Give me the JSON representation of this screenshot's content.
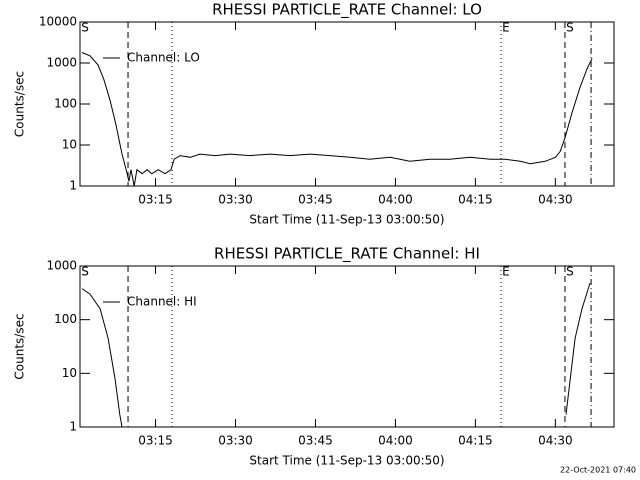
{
  "chart_data": [
    {
      "type": "line",
      "title": "RHESSI PARTICLE_RATE Channel: LO",
      "xlabel": "Start Time (11-Sep-13 03:00:50)",
      "ylabel": "Counts/sec",
      "log_y": true,
      "xlim": [
        0.83,
        101
      ],
      "ylim": [
        1,
        10000
      ],
      "xticks": [
        {
          "value": 15,
          "label": "03:15"
        },
        {
          "value": 30,
          "label": "03:30"
        },
        {
          "value": 45,
          "label": "03:45"
        },
        {
          "value": 60,
          "label": "04:00"
        },
        {
          "value": 75,
          "label": "04:15"
        },
        {
          "value": 90,
          "label": "04:30"
        }
      ],
      "yticks": [
        1,
        10,
        100,
        1000,
        10000
      ],
      "x": [
        1.2,
        2.7,
        4.2,
        5.3,
        6.5,
        7.6,
        8.7,
        9.5,
        10.0,
        10.4,
        11.0,
        11.5,
        12.5,
        13.4,
        14.3,
        15.5,
        16.8,
        17.9,
        18.5,
        19.6,
        21.5,
        23.3,
        26.2,
        29.0,
        32.7,
        36.5,
        40.2,
        44.0,
        47.7,
        51.5,
        55.2,
        59.0,
        62.7,
        66.5,
        70.2,
        74.0,
        77.8,
        80.6,
        83.4,
        85.3,
        88.1,
        90.0,
        90.9,
        91.8,
        93.1,
        94.6,
        95.9,
        96.9
      ],
      "series": [
        {
          "name": "Channel: LO",
          "color": "#000000",
          "values": [
            1800,
            1500,
            900,
            400,
            120,
            30,
            6,
            2.5,
            1.3,
            2.5,
            1,
            2.5,
            2,
            2.5,
            2,
            2.5,
            2,
            2.5,
            4.5,
            5.5,
            5,
            6,
            5.5,
            6,
            5.5,
            6,
            5.5,
            6,
            5.5,
            5,
            4.5,
            5,
            4,
            4.5,
            4.5,
            5,
            4.5,
            4.5,
            4,
            3.5,
            4,
            5,
            7,
            15,
            60,
            250,
            700,
            1300
          ]
        }
      ],
      "markers": [
        {
          "x": 0.83,
          "label": "S",
          "style": "solid"
        },
        {
          "x": 9.84,
          "style": "dashed"
        },
        {
          "x": 18.1,
          "style": "dotted"
        },
        {
          "x": 79.8,
          "label": "E",
          "style": "dotted"
        },
        {
          "x": 91.8,
          "label": "S",
          "style": "dashed"
        },
        {
          "x": 96.7,
          "style": "dashdot"
        }
      ]
    },
    {
      "type": "line",
      "title": "RHESSI PARTICLE_RATE Channel: HI",
      "xlabel": "Start Time (11-Sep-13 03:00:50)",
      "ylabel": "Counts/sec",
      "log_y": true,
      "xlim": [
        0.83,
        101
      ],
      "ylim": [
        1,
        1000
      ],
      "xticks": [
        {
          "value": 15,
          "label": "03:15"
        },
        {
          "value": 30,
          "label": "03:30"
        },
        {
          "value": 45,
          "label": "03:45"
        },
        {
          "value": 60,
          "label": "04:00"
        },
        {
          "value": 75,
          "label": "04:15"
        },
        {
          "value": 90,
          "label": "04:30"
        }
      ],
      "yticks": [
        1,
        10,
        100,
        1000
      ],
      "x": [
        1.2,
        2.7,
        4.6,
        6.1,
        7.4,
        8.3,
        8.7,
        50,
        92.0,
        92.8,
        93.7,
        95.0,
        96.5
      ],
      "series": [
        {
          "name": "Channel: HI",
          "color": "#000000",
          "values": [
            380,
            300,
            160,
            45,
            8,
            1.7,
            1,
            null,
            1.7,
            8,
            45,
            160,
            480
          ]
        }
      ],
      "markers": [
        {
          "x": 0.83,
          "label": "S",
          "style": "solid"
        },
        {
          "x": 9.84,
          "style": "dashed"
        },
        {
          "x": 18.1,
          "style": "dotted"
        },
        {
          "x": 79.8,
          "label": "E",
          "style": "dotted"
        },
        {
          "x": 91.8,
          "label": "S",
          "style": "dashed"
        },
        {
          "x": 96.7,
          "style": "dashdot"
        }
      ]
    }
  ],
  "footer": "22-Oct-2021 07:40"
}
